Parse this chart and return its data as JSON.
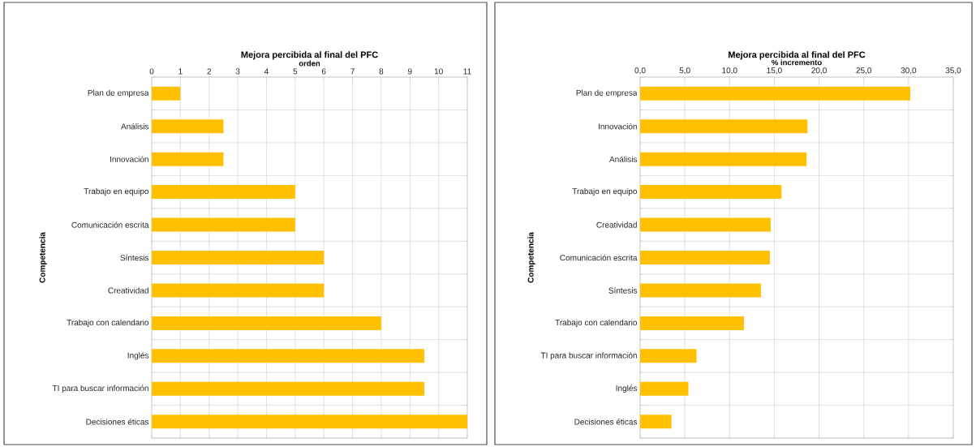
{
  "chart_data": [
    {
      "type": "bar",
      "orientation": "horizontal",
      "title": "Mejora percibida al final del PFC",
      "xlabel": "orden",
      "ylabel": "Competencia",
      "categories": [
        "Plan de empresa",
        "Análisis",
        "Innovación",
        "Trabajo en equipo",
        "Comunicación escrita",
        "Síntesis",
        "Creatividad",
        "Trabajo con calendario",
        "Inglés",
        "TI para buscar información",
        "Decisiones éticas"
      ],
      "values": [
        1,
        2.5,
        2.5,
        5,
        5,
        6,
        6,
        8,
        9.5,
        9.5,
        11
      ],
      "color": "#ffc000",
      "xlim": [
        0,
        11
      ],
      "xticks": [
        0,
        1,
        2,
        3,
        4,
        5,
        6,
        7,
        8,
        9,
        10,
        11
      ],
      "grid": true
    },
    {
      "type": "bar",
      "orientation": "horizontal",
      "title": "Mejora percibida al final del PFC",
      "xlabel": "% incremento",
      "ylabel": "Competencia",
      "categories": [
        "Plan de empresa",
        "Innovación",
        "Análisis",
        "Trabajo en equipo",
        "Creatividad",
        "Comunicación escrita",
        "Síntesis",
        "Trabajo con calendario",
        "TI para buscar información",
        "Inglés",
        "Decisiones éticas"
      ],
      "values": [
        30.2,
        18.7,
        18.6,
        15.8,
        14.6,
        14.5,
        13.5,
        11.6,
        6.3,
        5.4,
        3.5
      ],
      "color": "#ffc000",
      "xlim": [
        0,
        35
      ],
      "xticks": [
        {
          "value": 0,
          "label": "0,0"
        },
        {
          "value": 5,
          "label": "5,0"
        },
        {
          "value": 10,
          "label": "10,0"
        },
        {
          "value": 15,
          "label": "15,0"
        },
        {
          "value": 20,
          "label": "20,0"
        },
        {
          "value": 25,
          "label": "25,0"
        },
        {
          "value": 30,
          "label": "30,0"
        },
        {
          "value": 35,
          "label": "35,0"
        }
      ],
      "grid": true
    }
  ]
}
